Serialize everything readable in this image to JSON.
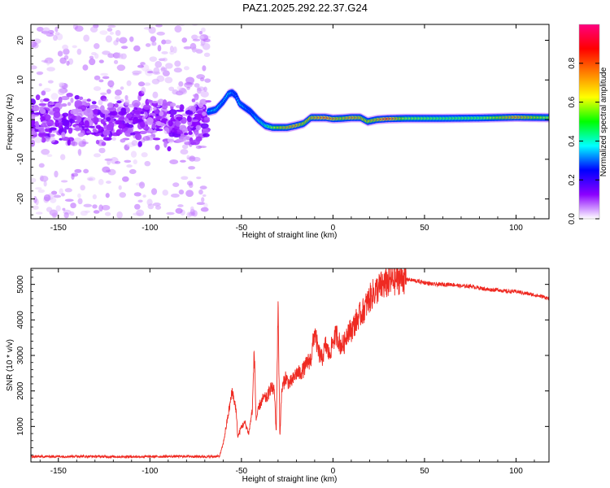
{
  "title": "PAZ1.2025.292.22.37.G24",
  "chart_data": [
    {
      "type": "heatmap",
      "name": "spectrogram",
      "xlabel": "Height of straight line (km)",
      "ylabel": "Frequency (Hz)",
      "xlim": [
        -165,
        118
      ],
      "ylim": [
        -25,
        24
      ],
      "xticks": [
        -150,
        -100,
        -50,
        0,
        50,
        100
      ],
      "yticks": [
        -20,
        -10,
        0,
        10,
        20
      ],
      "colorbar": {
        "label": "Normalized spectral amplitude",
        "range": [
          0,
          1
        ],
        "ticks": [
          0.0,
          0.2,
          0.4,
          0.6,
          0.8
        ],
        "colors": [
          "#ffffff",
          "#8b00ff",
          "#0000ff",
          "#00ffff",
          "#00ff00",
          "#ffff00",
          "#ff8000",
          "#ff0000",
          "#ff0080"
        ]
      },
      "ridge_frequency": {
        "x": [
          -68,
          -64,
          -60,
          -57,
          -55,
          -53,
          -51,
          -48,
          -45,
          -41,
          -37,
          -33,
          -29,
          -25,
          -20,
          -16,
          -12,
          -8,
          -4,
          0,
          5,
          10,
          15,
          19,
          24,
          30,
          40,
          60,
          80,
          100,
          118
        ],
        "y": [
          2.0,
          2.5,
          4.5,
          6.5,
          6.8,
          6.0,
          4.0,
          3.0,
          2.0,
          0.0,
          -1.5,
          -2.0,
          -2.0,
          -2.0,
          -1.5,
          -1.0,
          0.5,
          0.5,
          0.5,
          0.2,
          0.3,
          0.5,
          0.5,
          -0.5,
          0.0,
          0.2,
          0.3,
          0.3,
          0.4,
          0.6,
          0.5
        ],
        "amplitude": [
          0.35,
          0.4,
          0.35,
          0.4,
          0.35,
          0.3,
          0.4,
          0.35,
          0.3,
          0.4,
          0.45,
          0.6,
          0.7,
          0.75,
          0.8,
          0.7,
          0.75,
          0.8,
          0.85,
          0.8,
          0.7,
          0.8,
          0.75,
          0.7,
          0.75,
          0.9,
          0.6,
          0.55,
          0.55,
          0.8,
          0.6
        ]
      }
    },
    {
      "type": "line",
      "name": "snr",
      "xlabel": "Height of straight line (km)",
      "ylabel": "SNR (10 * v/v)",
      "xlim": [
        -165,
        118
      ],
      "ylim": [
        0,
        5450
      ],
      "xticks": [
        -150,
        -100,
        -50,
        0,
        50,
        100
      ],
      "yticks": [
        1000,
        2000,
        3000,
        4000,
        5000
      ],
      "color": "#ef2a22",
      "series": [
        {
          "name": "SNR",
          "x": [
            -165,
            -140,
            -120,
            -100,
            -80,
            -68,
            -62,
            -60,
            -57,
            -55,
            -53,
            -52,
            -50,
            -48,
            -46,
            -44,
            -43,
            -42,
            -40,
            -38,
            -36,
            -34,
            -32,
            -31,
            -30,
            -29,
            -28,
            -26,
            -24,
            -22,
            -20,
            -18,
            -16,
            -14,
            -12,
            -10,
            -8,
            -6,
            -4,
            -2,
            0,
            2,
            4,
            6,
            8,
            10,
            12,
            14,
            16,
            18,
            20,
            22,
            25,
            28,
            30,
            32,
            35,
            38,
            40,
            45,
            50,
            55,
            60,
            65,
            70,
            75,
            80,
            85,
            90,
            95,
            100,
            105,
            110,
            115,
            118
          ],
          "y": [
            150,
            160,
            150,
            150,
            160,
            150,
            160,
            500,
            1400,
            2000,
            1500,
            700,
            1000,
            1100,
            800,
            1500,
            3200,
            1200,
            1600,
            1800,
            1800,
            2100,
            2000,
            800,
            4500,
            700,
            2000,
            2400,
            2200,
            2300,
            2500,
            2500,
            2600,
            2800,
            2900,
            3700,
            3100,
            2900,
            3300,
            3000,
            3400,
            3600,
            3300,
            3300,
            3700,
            3700,
            3900,
            4100,
            4200,
            4400,
            4600,
            4750,
            4900,
            5000,
            5050,
            5100,
            5150,
            5200,
            5150,
            5100,
            5050,
            5000,
            5000,
            5000,
            4950,
            4950,
            4900,
            4850,
            4850,
            4800,
            4800,
            4750,
            4700,
            4650,
            4600
          ]
        }
      ]
    }
  ]
}
